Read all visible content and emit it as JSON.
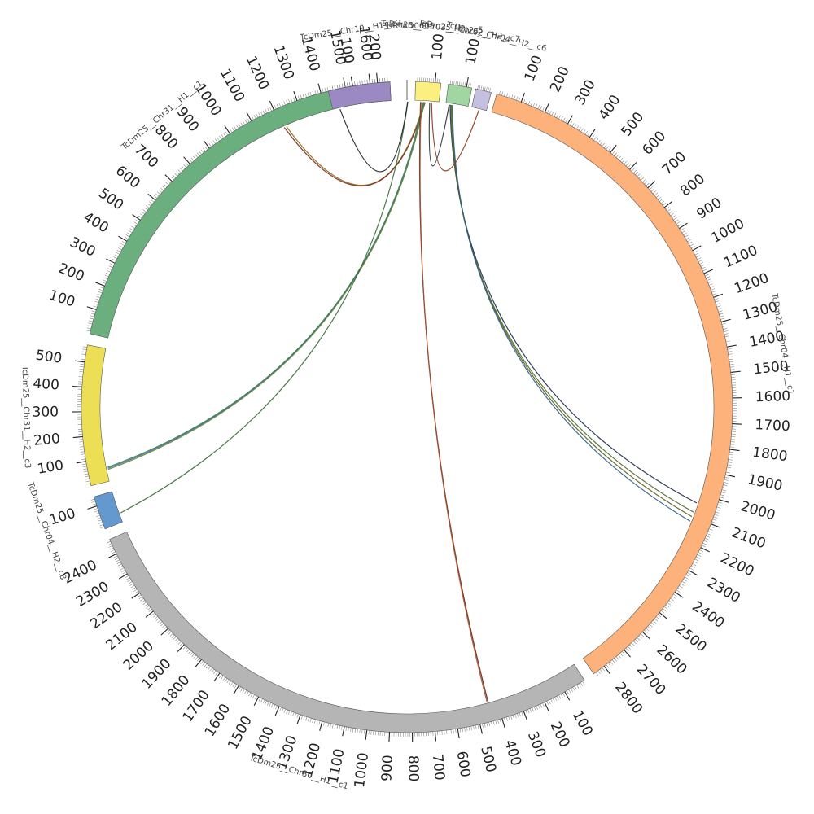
{
  "diagram": {
    "segments": [
      {
        "id": "c1_1",
        "name": "TcDm25__Chr04__H1__c1",
        "length": 2850,
        "color": "#FDB27C",
        "ticks": [
          100,
          200,
          300,
          400,
          500,
          600,
          700,
          800,
          900,
          1000,
          1100,
          1200,
          1300,
          1400,
          1500,
          1600,
          1700,
          1800,
          1900,
          2000,
          2100,
          2200,
          2300,
          2400,
          2500,
          2600,
          2700,
          2800
        ]
      },
      {
        "id": "c30",
        "name": "TcDm25__Chr30__H1__c1",
        "length": 2470,
        "color": "#B5B5B5",
        "ticks": [
          100,
          200,
          300,
          400,
          500,
          600,
          700,
          800,
          900,
          1000,
          1100,
          1200,
          1300,
          1400,
          1500,
          1600,
          1700,
          1800,
          1900,
          2000,
          2100,
          2200,
          2300,
          2400
        ]
      },
      {
        "id": "c4h2",
        "name": "TcDm25__Chr04__H2__c8",
        "length": 140,
        "color": "#6499CF",
        "ticks": [
          100
        ]
      },
      {
        "id": "c31h2",
        "name": "TcDm25__Chr31__H2__c3",
        "length": 570,
        "color": "#ECDF55",
        "ticks": [
          100,
          200,
          300,
          400,
          500
        ]
      },
      {
        "id": "c31h1",
        "name": "TcDm25__Chr31__H1__c1",
        "length": 1680,
        "color": "#6AAF7D",
        "ticks": [
          100,
          200,
          300,
          400,
          500,
          600,
          700,
          800,
          900,
          1000,
          1100,
          1200,
          1300,
          1400,
          1500,
          1600
        ]
      },
      {
        "id": "c19",
        "name": "TcDm25__Chr19__H1__c2",
        "length": 250,
        "color": "#9A89C3",
        "ticks": [
          100,
          200
        ]
      },
      {
        "id": "tiny",
        "name": "PHRTAD0605",
        "length": 12,
        "color": "#DDDDDD",
        "ticks": []
      },
      {
        "id": "c3h2",
        "name": "TcDm25__Chr03__H2__c5",
        "length": 130,
        "color": "#FBF07F",
        "ticks": [
          100
        ]
      },
      {
        "id": "c2h2",
        "name": "TcDm25__Chr02__H2__c7",
        "length": 130,
        "color": "#A1D6A3",
        "ticks": [
          100
        ]
      },
      {
        "id": "c4c6",
        "name": "TcDm25__Chr04__H2__c6",
        "length": 90,
        "color": "#C5BFE0",
        "ticks": []
      }
    ],
    "links": [
      {
        "from": "c31h1",
        "from_pos": 1220,
        "to": "c3h2",
        "to_pos": 50,
        "color": "#8a6a1a"
      },
      {
        "from": "c31h1",
        "from_pos": 1210,
        "to": "c3h2",
        "to_pos": 55,
        "color": "#7a2a1a"
      },
      {
        "from": "c31h2",
        "from_pos": 60,
        "to": "c3h2",
        "to_pos": 45,
        "color": "#2e7f4a"
      },
      {
        "from": "c31h2",
        "from_pos": 55,
        "to": "c3h2",
        "to_pos": 50,
        "color": "#3f5fa8"
      },
      {
        "from": "c31h2",
        "from_pos": 50,
        "to": "c3h2",
        "to_pos": 52,
        "color": "#6a8a2a"
      },
      {
        "from": "c4h2",
        "from_pos": 40,
        "to": "tiny",
        "to_pos": 6,
        "color": "#3c6b3a"
      },
      {
        "from": "c19",
        "from_pos": 30,
        "to": "tiny",
        "to_pos": 4,
        "color": "#222222"
      },
      {
        "from": "c2h2",
        "from_pos": 25,
        "to": "c1_1",
        "to_pos": 2040,
        "color": "#1b2a4a"
      },
      {
        "from": "c2h2",
        "from_pos": 30,
        "to": "c1_1",
        "to_pos": 2080,
        "color": "#4d6b2b"
      },
      {
        "from": "c2h2",
        "from_pos": 35,
        "to": "c1_1",
        "to_pos": 2100,
        "color": "#5a5a1a"
      },
      {
        "from": "c2h2",
        "from_pos": 40,
        "to": "c1_1",
        "to_pos": 2120,
        "color": "#2a5e8a"
      },
      {
        "from": "c4c6",
        "from_pos": 45,
        "to": "c3h2",
        "to_pos": 90,
        "color": "#8b3a1a"
      },
      {
        "from": "c3h2",
        "from_pos": 30,
        "to": "c30",
        "to_pos": 440,
        "color": "#6b1f0f"
      },
      {
        "from": "c3h2",
        "from_pos": 33,
        "to": "c30",
        "to_pos": 445,
        "color": "#a0522d"
      },
      {
        "from": "c2h2",
        "from_pos": 20,
        "to": "c3h2",
        "to_pos": 80,
        "color": "#2d2d2d"
      }
    ]
  }
}
